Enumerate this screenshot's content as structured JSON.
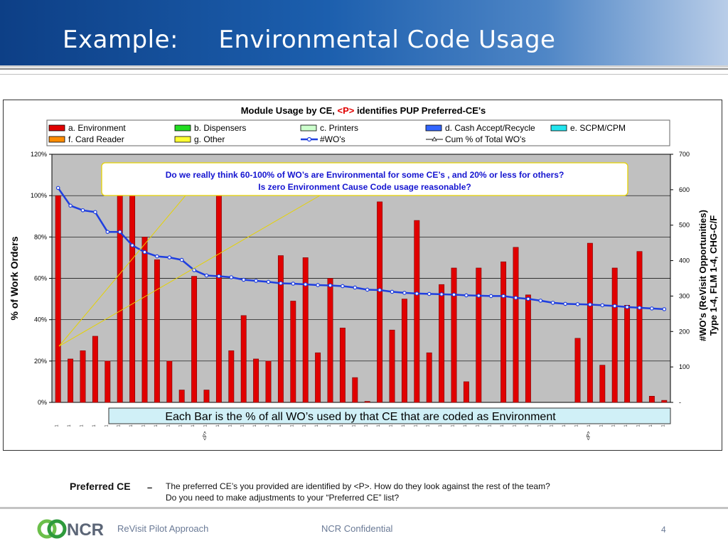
{
  "slide": {
    "title": "Example:     Environmental Code Usage",
    "preferred_label": "Preferred CE",
    "preferred_dash": "–",
    "preferred_text_1": "The preferred CE’s you provided are identified by <P>.  How do they look against the rest of the team?",
    "preferred_text_2": "Do you need to make adjustments to your “Preferred CE” list?",
    "footer_left": "ReVisit Pilot Approach",
    "footer_center": "NCR Confidential",
    "page_number": "4",
    "logo_text": "NCR"
  },
  "chart_data": {
    "type": "bar",
    "title_main": "Module Usage by CE, ",
    "title_highlight": "<P>",
    "title_rest": " identifies PUP Preferred-CE's",
    "ylabel": "% of Work Orders",
    "y2label_line1": "#WO's (ReVisit Opportunities)",
    "y2label_line2": "Type 1-4, FLM 1-4, CHG-C/F",
    "ylim": [
      0,
      120
    ],
    "y2lim": [
      0,
      700
    ],
    "y_ticks": [
      "0%",
      "20%",
      "40%",
      "60%",
      "80%",
      "100%",
      "120%"
    ],
    "y2_ticks": [
      "-",
      "100",
      "200",
      "300",
      "400",
      "500",
      "600",
      "700"
    ],
    "grid": true,
    "legend_placement": "top",
    "legend": [
      {
        "label": "a. Environment",
        "type": "box",
        "color": "#e00000"
      },
      {
        "label": "b. Dispensers",
        "type": "box",
        "color": "#22dd22"
      },
      {
        "label": "c. Printers",
        "type": "box",
        "color": "#ccffcc"
      },
      {
        "label": "d. Cash Accept/Recycle",
        "type": "box",
        "color": "#3366ff"
      },
      {
        "label": "e. SCPM/CPM",
        "type": "box",
        "color": "#22e5ee"
      },
      {
        "label": "f. Card Reader",
        "type": "box",
        "color": "#ff8c00"
      },
      {
        "label": "g. Other",
        "type": "box",
        "color": "#ffff33"
      },
      {
        "label": "#WO's",
        "type": "line",
        "color": "#1f3fe0"
      },
      {
        "label": "Cum % of Total WO's",
        "type": "line-triangle",
        "color": "#111111"
      }
    ],
    "category_marks": [
      "1",
      "1",
      "1",
      "1",
      "1",
      "1",
      "1",
      "1",
      "1",
      "1",
      "1",
      "1",
      "1",
      "1",
      "1",
      "1",
      "1",
      "1",
      "1",
      "1",
      "1",
      "1",
      "1",
      "1",
      "1",
      "1",
      "1",
      "1",
      "1",
      "1",
      "1",
      "1",
      "1",
      "1",
      "1",
      "1",
      "1",
      "1",
      "1",
      "1",
      "1",
      "1",
      "1",
      "1",
      "1",
      "1",
      "1",
      "1",
      "1",
      "1"
    ],
    "preferred_marks": [
      {
        "index": 12,
        "label": "<P>"
      },
      {
        "index": 43,
        "label": "<P>"
      }
    ],
    "series": [
      {
        "name": "a. Environment",
        "values": [
          100,
          21,
          25,
          32,
          20,
          100,
          100,
          80,
          69,
          20,
          6,
          61,
          6,
          100,
          25,
          42,
          21,
          20,
          71,
          49,
          70,
          24,
          60,
          36,
          12,
          0.5,
          97,
          35,
          50,
          88,
          24,
          57,
          65,
          10,
          65,
          0,
          68,
          75,
          52,
          0,
          0,
          0,
          31,
          77,
          18,
          65,
          47,
          73,
          3,
          1
        ]
      },
      {
        "name": "#WO's",
        "values": [
          605,
          555,
          542,
          537,
          481,
          481,
          443,
          424,
          412,
          409,
          402,
          373,
          358,
          356,
          353,
          346,
          343,
          340,
          336,
          335,
          333,
          331,
          330,
          328,
          324,
          318,
          317,
          312,
          309,
          307,
          306,
          305,
          304,
          302,
          301,
          300,
          300,
          295,
          292,
          287,
          281,
          278,
          277,
          276,
          274,
          272,
          269,
          267,
          265,
          263
        ]
      }
    ],
    "callouts": [
      {
        "line1": "Do we really think 60-100% of WO’s are Environmental for some CE’s , and 20% or less for others?",
        "line2": "Is zero Environment Cause Code usage reasonable?"
      },
      {
        "text": "Each Bar is the % of all WO’s used by that CE that are coded as Environment"
      }
    ]
  }
}
